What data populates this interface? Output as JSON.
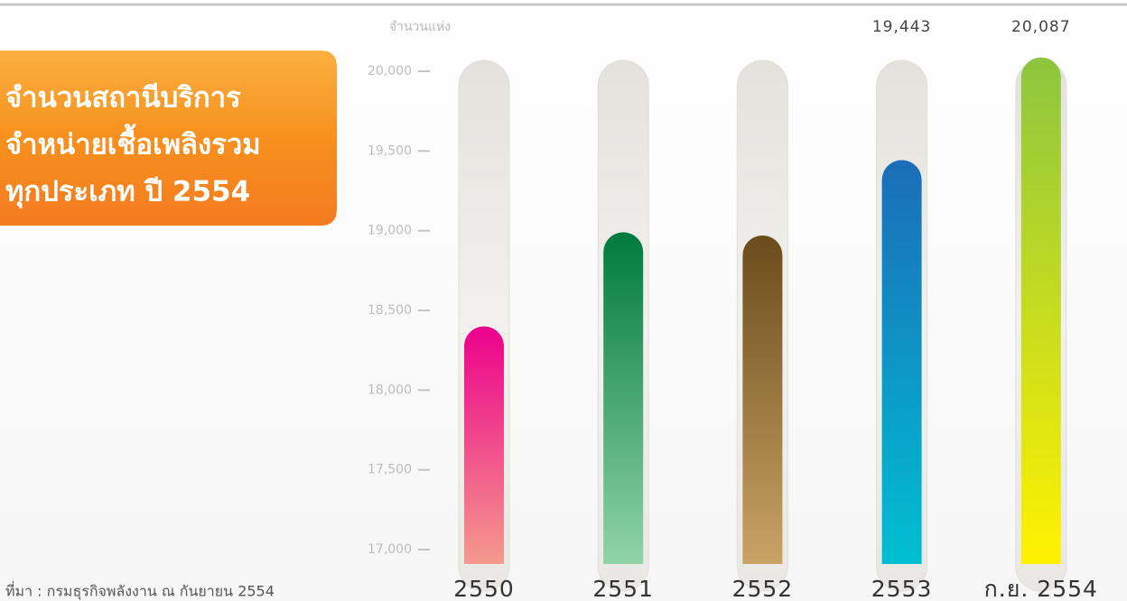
{
  "chart_data": {
    "type": "bar",
    "title": [
      "จำนวนสถานีบริการ",
      "จำหน่ายเชื้อเพลิงรวม",
      "ทุกประเภท ปี 2554"
    ],
    "y_label": "จำนวนแห่ง",
    "source": "ที่มา : กรมธุรกิจพลังงาน ณ กันยายน 2554",
    "categories": [
      "2550",
      "2551",
      "2552",
      "2553",
      "ก.ย. 2554"
    ],
    "values": [
      18400,
      18990,
      18970,
      19443,
      20087
    ],
    "value_labels": [
      null,
      null,
      null,
      "19,443",
      "20,087"
    ],
    "colors": [
      {
        "top": "#ec008c",
        "bottom": "#f59a8c"
      },
      {
        "top": "#007a3d",
        "bottom": "#90d4a6"
      },
      {
        "top": "#6b4c1a",
        "bottom": "#c9a366"
      },
      {
        "top": "#1b6db8",
        "bottom": "#00bfd2"
      },
      {
        "top": "#8cc63f",
        "bottom": "#fff200"
      }
    ],
    "ylim": [
      17000,
      20000
    ],
    "yticks": [
      {
        "value": 17000,
        "label": "17,000"
      },
      {
        "value": 17500,
        "label": "17,500"
      },
      {
        "value": 18000,
        "label": "18,000"
      },
      {
        "value": 18500,
        "label": "18,500"
      },
      {
        "value": 19000,
        "label": "19,000"
      },
      {
        "value": 19500,
        "label": "19,500"
      },
      {
        "value": 20000,
        "label": "20,000"
      }
    ]
  }
}
